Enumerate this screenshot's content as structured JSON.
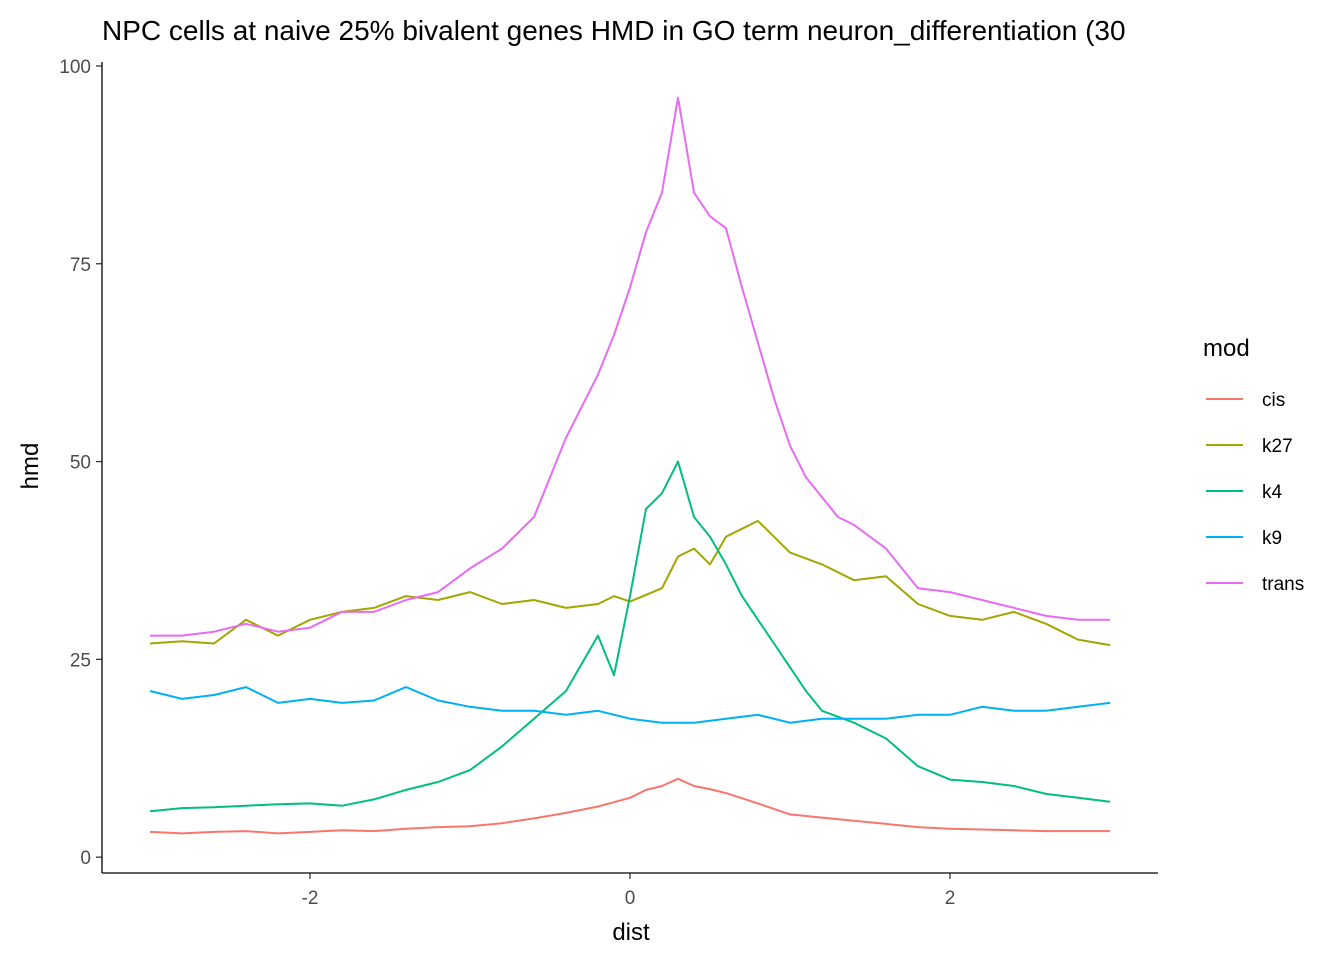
{
  "chart_data": {
    "type": "line",
    "title": "NPC cells at naive 25% bivalent genes HMD in GO term neuron_differentiation (30",
    "xlabel": "dist",
    "ylabel": "hmd",
    "xlim": [
      -3.3,
      3.3
    ],
    "ylim": [
      -2,
      100.5
    ],
    "x_ticks": [
      -2,
      0,
      2
    ],
    "y_ticks": [
      0,
      25,
      50,
      75,
      100
    ],
    "grid": false,
    "legend": {
      "title": "mod",
      "position": "right"
    },
    "series": [
      {
        "name": "cis",
        "color": "#F8766D",
        "x": [
          -3.0,
          -2.8,
          -2.6,
          -2.4,
          -2.2,
          -2.0,
          -1.8,
          -1.6,
          -1.4,
          -1.2,
          -1.0,
          -0.8,
          -0.6,
          -0.4,
          -0.2,
          0.0,
          0.1,
          0.2,
          0.3,
          0.4,
          0.5,
          0.6,
          0.8,
          1.0,
          1.2,
          1.4,
          1.6,
          1.8,
          2.0,
          2.2,
          2.4,
          2.6,
          2.8,
          3.0
        ],
        "y": [
          3.2,
          3.0,
          3.2,
          3.3,
          3.0,
          3.2,
          3.4,
          3.3,
          3.6,
          3.8,
          3.9,
          4.3,
          4.9,
          5.6,
          6.4,
          7.5,
          8.5,
          9.0,
          9.9,
          9.0,
          8.6,
          8.1,
          6.8,
          5.4,
          5.0,
          4.6,
          4.2,
          3.8,
          3.6,
          3.5,
          3.4,
          3.3,
          3.3,
          3.3
        ]
      },
      {
        "name": "k27",
        "color": "#A3A500",
        "x": [
          -3.0,
          -2.8,
          -2.6,
          -2.4,
          -2.2,
          -2.0,
          -1.8,
          -1.6,
          -1.4,
          -1.2,
          -1.0,
          -0.8,
          -0.6,
          -0.4,
          -0.2,
          -0.1,
          0.0,
          0.2,
          0.3,
          0.4,
          0.5,
          0.6,
          0.8,
          1.0,
          1.2,
          1.4,
          1.6,
          1.8,
          2.0,
          2.2,
          2.4,
          2.6,
          2.8,
          3.0
        ],
        "y": [
          27.0,
          27.3,
          27.0,
          30.0,
          28.0,
          30.0,
          31.0,
          31.5,
          33.0,
          32.5,
          33.5,
          32.0,
          32.5,
          31.5,
          32.0,
          33.0,
          32.3,
          34.0,
          38.0,
          39.0,
          37.0,
          40.5,
          42.5,
          38.5,
          37.0,
          35.0,
          35.5,
          32.0,
          30.5,
          30.0,
          31.0,
          29.5,
          27.5,
          26.8
        ]
      },
      {
        "name": "k4",
        "color": "#00BF7D",
        "x": [
          -3.0,
          -2.8,
          -2.6,
          -2.4,
          -2.2,
          -2.0,
          -1.8,
          -1.6,
          -1.4,
          -1.2,
          -1.0,
          -0.8,
          -0.6,
          -0.4,
          -0.3,
          -0.2,
          -0.1,
          0.0,
          0.1,
          0.2,
          0.3,
          0.4,
          0.5,
          0.6,
          0.7,
          0.8,
          0.9,
          1.0,
          1.1,
          1.2,
          1.4,
          1.6,
          1.8,
          2.0,
          2.2,
          2.4,
          2.6,
          2.8,
          3.0
        ],
        "y": [
          5.8,
          6.2,
          6.3,
          6.5,
          6.7,
          6.8,
          6.5,
          7.3,
          8.5,
          9.5,
          11.0,
          14.0,
          17.5,
          21.0,
          24.5,
          28.0,
          23.0,
          33.0,
          44.0,
          46.0,
          50.0,
          43.0,
          40.5,
          37.0,
          33.0,
          30.0,
          27.0,
          24.0,
          21.0,
          18.5,
          17.0,
          15.0,
          11.5,
          9.8,
          9.5,
          9.0,
          8.0,
          7.5,
          7.0
        ]
      },
      {
        "name": "k9",
        "color": "#00B0F6",
        "x": [
          -3.0,
          -2.8,
          -2.6,
          -2.4,
          -2.2,
          -2.0,
          -1.8,
          -1.6,
          -1.4,
          -1.2,
          -1.0,
          -0.8,
          -0.6,
          -0.4,
          -0.2,
          0.0,
          0.2,
          0.4,
          0.6,
          0.8,
          1.0,
          1.2,
          1.4,
          1.6,
          1.8,
          2.0,
          2.2,
          2.4,
          2.6,
          2.8,
          3.0
        ],
        "y": [
          21.0,
          20.0,
          20.5,
          21.5,
          19.5,
          20.0,
          19.5,
          19.8,
          21.5,
          19.8,
          19.0,
          18.5,
          18.5,
          18.0,
          18.5,
          17.5,
          17.0,
          17.0,
          17.5,
          18.0,
          17.0,
          17.5,
          17.5,
          17.5,
          18.0,
          18.0,
          19.0,
          18.5,
          18.5,
          19.0,
          19.5
        ]
      },
      {
        "name": "trans",
        "color": "#E76BF3",
        "x": [
          -3.0,
          -2.8,
          -2.6,
          -2.4,
          -2.2,
          -2.0,
          -1.8,
          -1.6,
          -1.4,
          -1.2,
          -1.0,
          -0.8,
          -0.6,
          -0.5,
          -0.4,
          -0.3,
          -0.2,
          -0.1,
          0.0,
          0.1,
          0.2,
          0.3,
          0.4,
          0.5,
          0.6,
          0.7,
          0.8,
          0.9,
          1.0,
          1.1,
          1.2,
          1.3,
          1.4,
          1.6,
          1.8,
          2.0,
          2.2,
          2.4,
          2.6,
          2.8,
          3.0
        ],
        "y": [
          28.0,
          28.0,
          28.5,
          29.5,
          28.5,
          29.0,
          31.0,
          31.0,
          32.5,
          33.5,
          36.5,
          39.0,
          43.0,
          48.0,
          53.0,
          57.0,
          61.0,
          66.0,
          72.0,
          79.0,
          84.0,
          96.0,
          84.0,
          81.0,
          79.5,
          72.0,
          65.0,
          58.0,
          52.0,
          48.0,
          45.5,
          43.0,
          42.0,
          39.0,
          34.0,
          33.5,
          32.5,
          31.5,
          30.5,
          30.0,
          30.0
        ]
      }
    ]
  }
}
